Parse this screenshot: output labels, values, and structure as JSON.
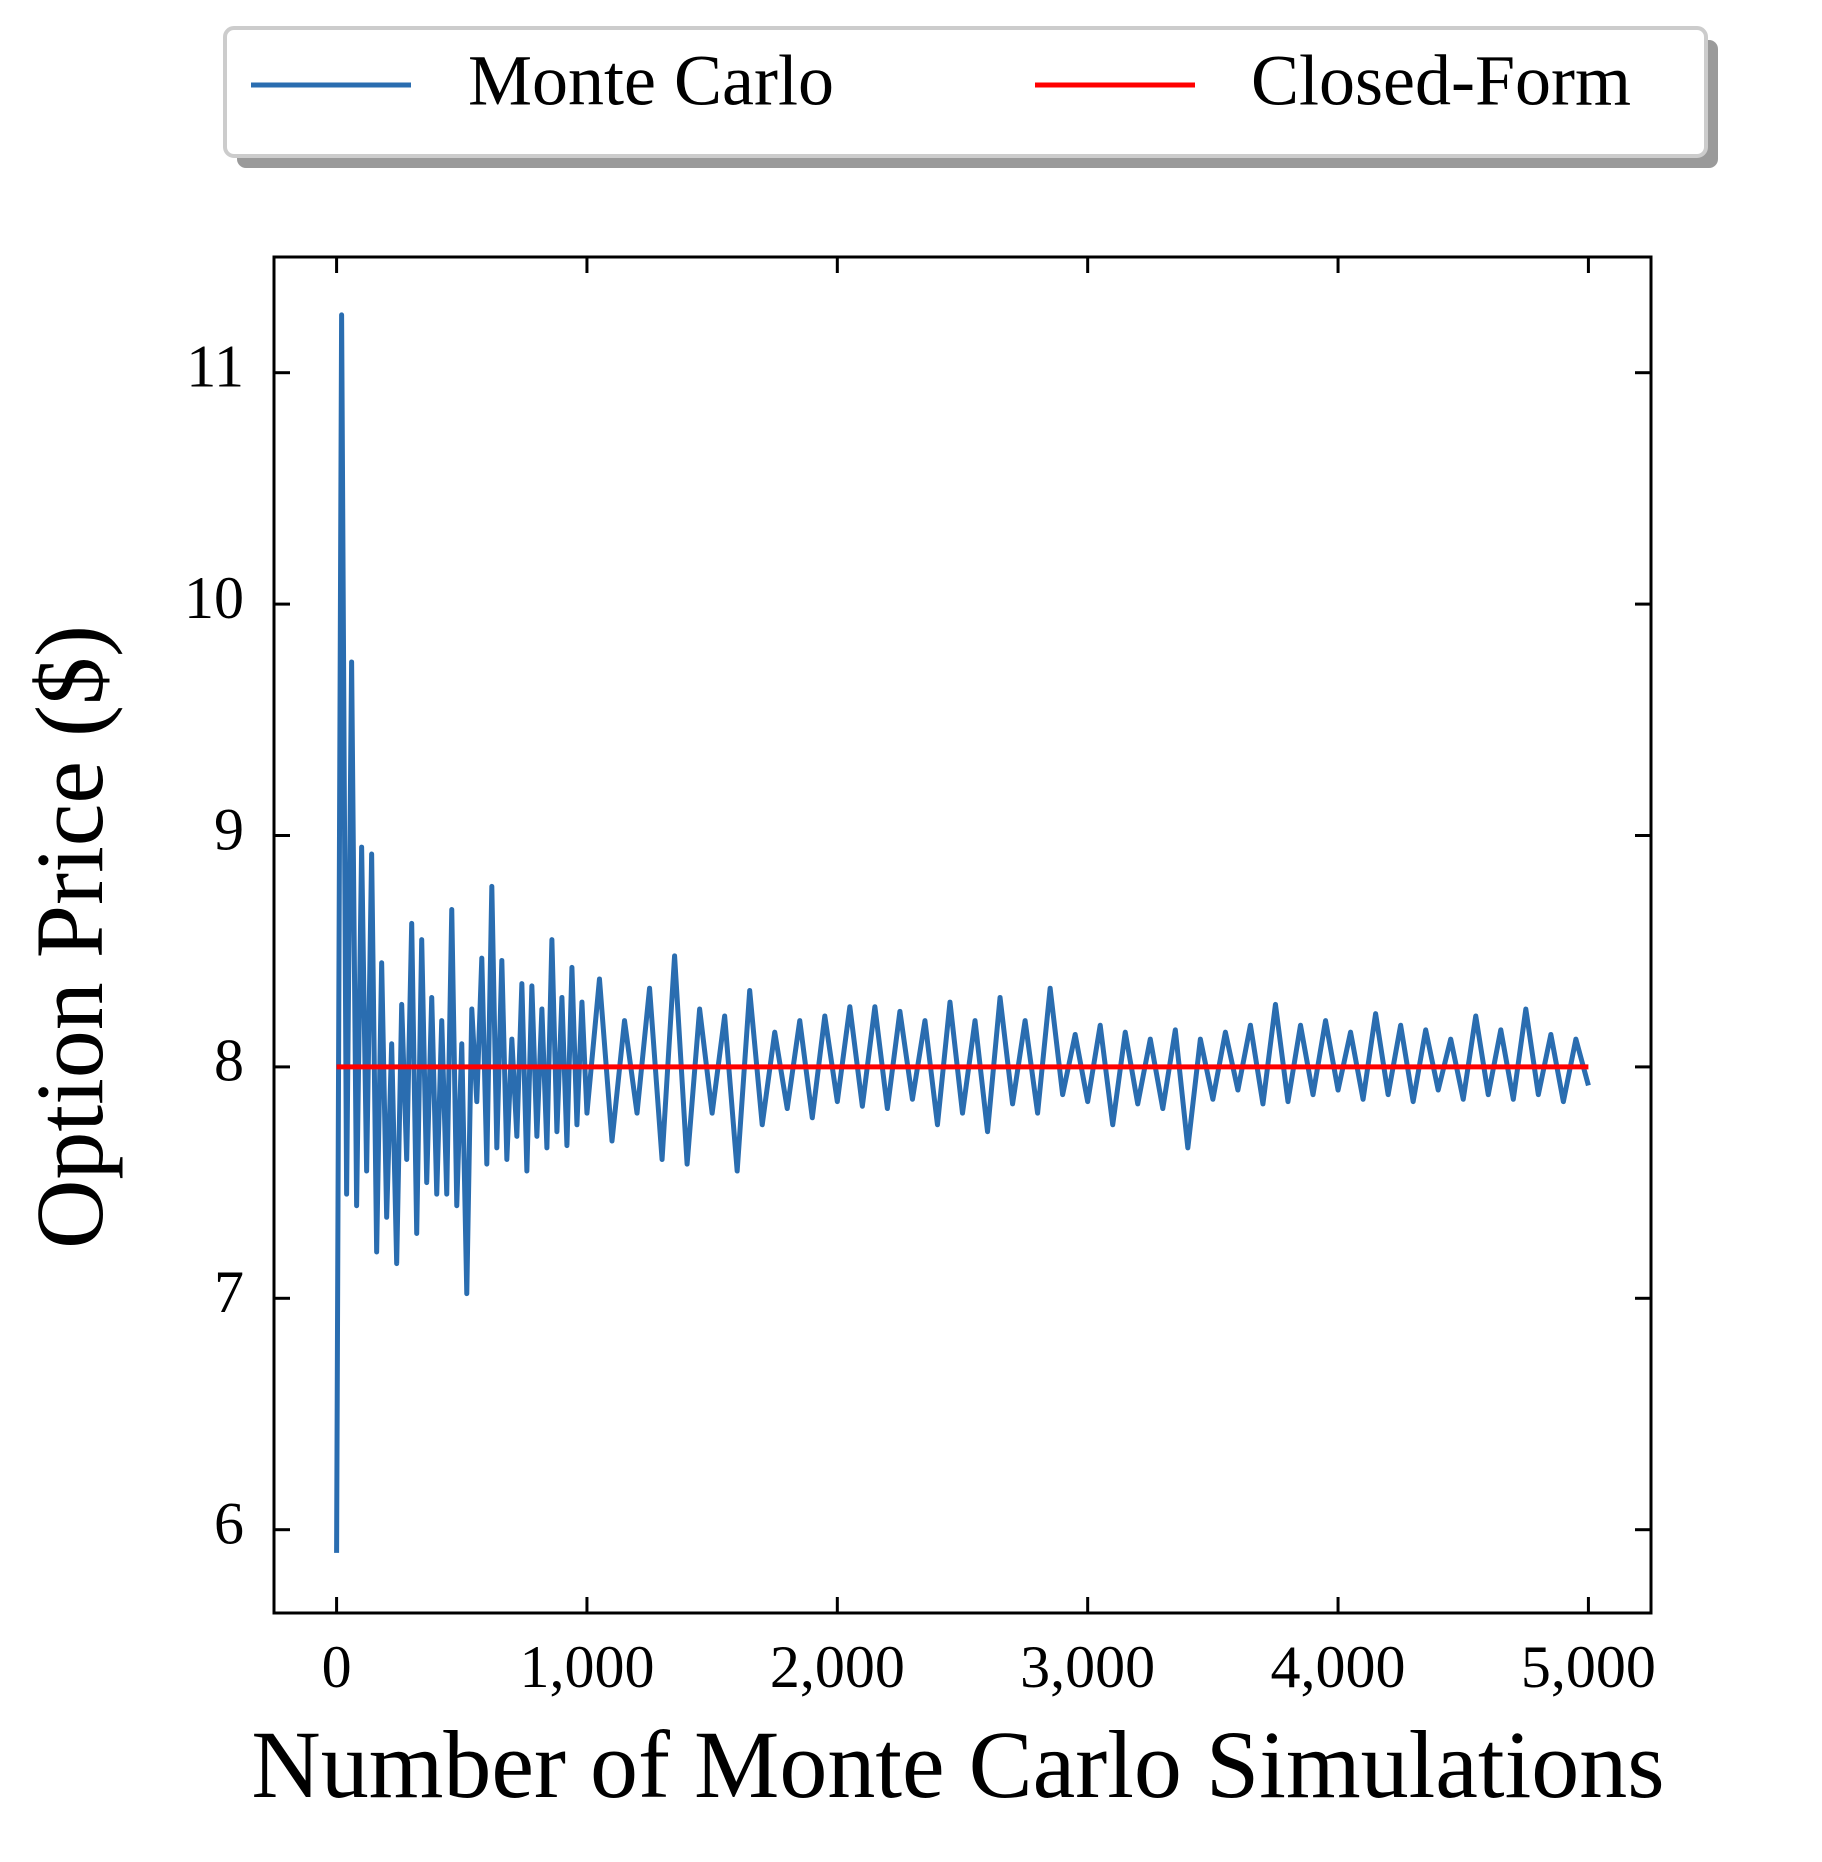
{
  "chart_data": {
    "type": "line",
    "xlabel": "Number of Monte Carlo Simulations",
    "ylabel": "Option Price ($)",
    "xlim": [
      -250,
      5250
    ],
    "ylim": [
      5.64,
      11.5
    ],
    "xticks": [
      0,
      {
        "value": 1000,
        "label": "1,000"
      },
      {
        "value": 2000,
        "label": "2,000"
      },
      {
        "value": 3000,
        "label": "3,000"
      },
      {
        "value": 4000,
        "label": "4,000"
      },
      {
        "value": 5000,
        "label": "5,000"
      }
    ],
    "yticks": [
      6,
      7,
      8,
      9,
      10,
      11
    ],
    "legend": "top",
    "series": [
      {
        "name": "Monte Carlo",
        "color": "#2a6db0",
        "x": [
          0,
          20,
          40,
          60,
          80,
          100,
          120,
          140,
          160,
          180,
          200,
          220,
          240,
          260,
          280,
          300,
          320,
          340,
          360,
          380,
          400,
          420,
          440,
          460,
          480,
          500,
          520,
          540,
          560,
          580,
          600,
          620,
          640,
          660,
          680,
          700,
          720,
          740,
          760,
          780,
          800,
          820,
          840,
          860,
          880,
          900,
          920,
          940,
          960,
          980,
          1000,
          1050,
          1100,
          1150,
          1200,
          1250,
          1300,
          1350,
          1400,
          1450,
          1500,
          1550,
          1600,
          1650,
          1700,
          1750,
          1800,
          1850,
          1900,
          1950,
          2000,
          2050,
          2100,
          2150,
          2200,
          2250,
          2300,
          2350,
          2400,
          2450,
          2500,
          2550,
          2600,
          2650,
          2700,
          2750,
          2800,
          2850,
          2900,
          2950,
          3000,
          3050,
          3100,
          3150,
          3200,
          3250,
          3300,
          3350,
          3400,
          3450,
          3500,
          3550,
          3600,
          3650,
          3700,
          3750,
          3800,
          3850,
          3900,
          3950,
          4000,
          4050,
          4100,
          4150,
          4200,
          4250,
          4300,
          4350,
          4400,
          4450,
          4500,
          4550,
          4600,
          4650,
          4700,
          4750,
          4800,
          4850,
          4900,
          4950,
          5000
        ],
        "values": [
          5.9,
          11.25,
          7.45,
          9.75,
          7.4,
          8.95,
          7.55,
          8.92,
          7.2,
          8.45,
          7.35,
          8.1,
          7.15,
          8.27,
          7.6,
          8.62,
          7.28,
          8.55,
          7.5,
          8.3,
          7.45,
          8.2,
          7.45,
          8.68,
          7.4,
          8.1,
          7.02,
          8.25,
          7.85,
          8.47,
          7.58,
          8.78,
          7.65,
          8.46,
          7.6,
          8.12,
          7.7,
          8.36,
          7.55,
          8.35,
          7.7,
          8.25,
          7.65,
          8.55,
          7.72,
          8.3,
          7.66,
          8.43,
          7.75,
          8.28,
          7.8,
          8.38,
          7.68,
          8.2,
          7.8,
          8.34,
          7.6,
          8.48,
          7.58,
          8.25,
          7.8,
          8.22,
          7.55,
          8.33,
          7.75,
          8.15,
          7.82,
          8.2,
          7.78,
          8.22,
          7.85,
          8.26,
          7.83,
          8.26,
          7.82,
          8.24,
          7.86,
          8.2,
          7.75,
          8.28,
          7.8,
          8.2,
          7.72,
          8.3,
          7.84,
          8.2,
          7.8,
          8.34,
          7.88,
          8.14,
          7.85,
          8.18,
          7.75,
          8.15,
          7.84,
          8.12,
          7.82,
          8.16,
          7.65,
          8.12,
          7.86,
          8.15,
          7.9,
          8.18,
          7.84,
          8.27,
          7.85,
          8.18,
          7.88,
          8.2,
          7.9,
          8.15,
          7.86,
          8.23,
          7.88,
          8.18,
          7.85,
          8.16,
          7.9,
          8.12,
          7.86,
          8.22,
          7.88,
          8.16,
          7.86,
          8.25,
          7.88,
          8.14,
          7.85,
          8.12,
          7.92
        ]
      },
      {
        "name": "Closed-Form",
        "color": "#ff0000",
        "x": [
          0,
          5000
        ],
        "values": [
          8,
          8
        ]
      }
    ]
  }
}
